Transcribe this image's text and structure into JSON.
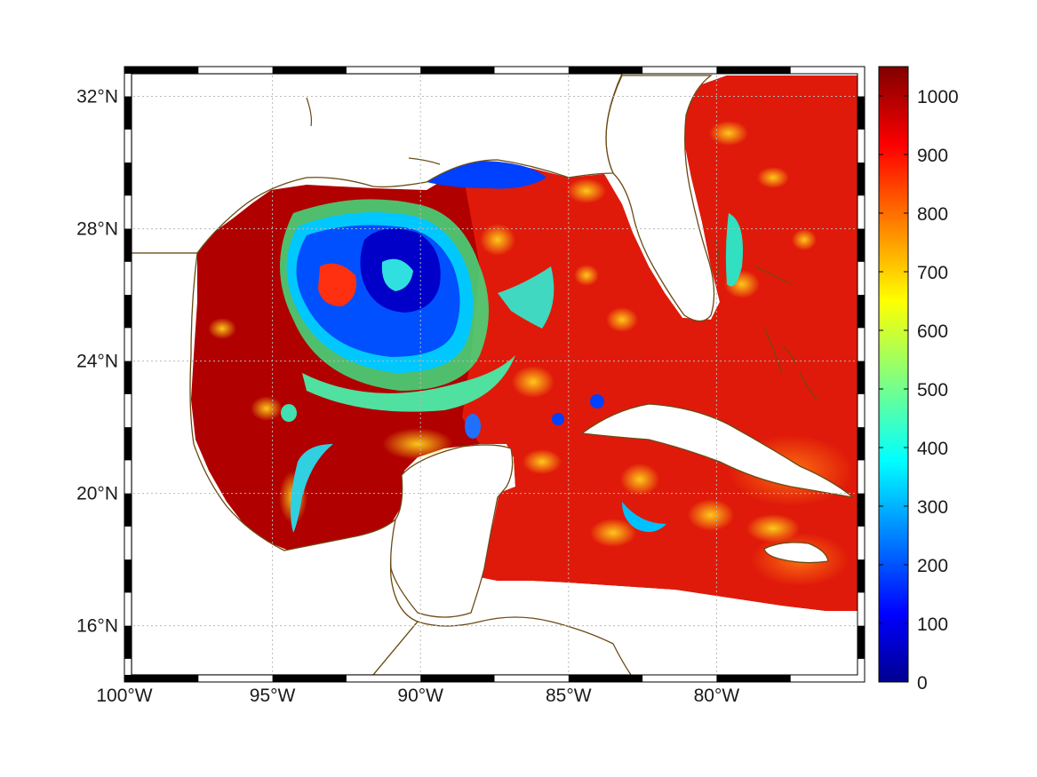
{
  "map": {
    "lon_range": [
      -100,
      -75
    ],
    "lat_range": [
      14.3,
      32.9
    ],
    "lon_ticks": [
      {
        "value": -100,
        "label": "100°W"
      },
      {
        "value": -95,
        "label": "95°W"
      },
      {
        "value": -90,
        "label": "90°W"
      },
      {
        "value": -85,
        "label": "85°W"
      },
      {
        "value": -80,
        "label": "80°W"
      }
    ],
    "lat_ticks": [
      {
        "value": 16,
        "label": "16°N"
      },
      {
        "value": 20,
        "label": "20°N"
      },
      {
        "value": 24,
        "label": "24°N"
      },
      {
        "value": 28,
        "label": "28°N"
      },
      {
        "value": 32,
        "label": "32°N"
      }
    ],
    "grid": true,
    "frame": "black-and-white checkered border",
    "coastline_color": "#6b4a14",
    "land_color": "#ffffff",
    "colormap": "jet"
  },
  "colorbar": {
    "range": [
      0,
      1050
    ],
    "ticks": [
      {
        "value": 0,
        "label": "0"
      },
      {
        "value": 100,
        "label": "100"
      },
      {
        "value": 200,
        "label": "200"
      },
      {
        "value": 300,
        "label": "300"
      },
      {
        "value": 400,
        "label": "400"
      },
      {
        "value": 500,
        "label": "500"
      },
      {
        "value": 600,
        "label": "600"
      },
      {
        "value": 700,
        "label": "700"
      },
      {
        "value": 800,
        "label": "800"
      },
      {
        "value": 900,
        "label": "900"
      },
      {
        "value": 1000,
        "label": "1000"
      }
    ],
    "placement": "right"
  }
}
